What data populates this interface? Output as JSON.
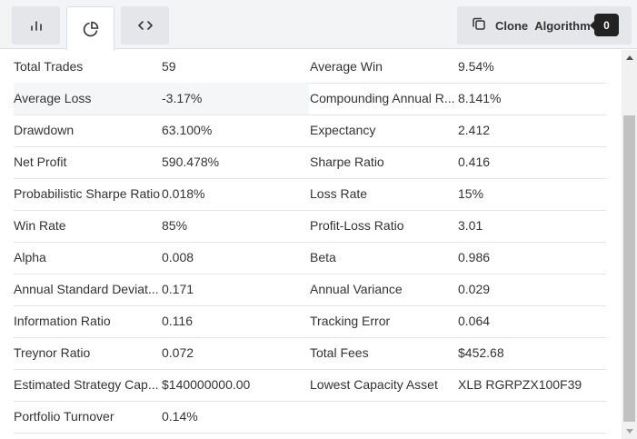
{
  "toolbar": {
    "tabs": [
      {
        "icon": "bar-chart-icon",
        "active": false
      },
      {
        "icon": "pie-chart-icon",
        "active": true
      },
      {
        "icon": "code-icon",
        "active": false
      }
    ],
    "clone_button": {
      "label": "Clone Algorithm",
      "icon": "copy-icon",
      "badge": "0"
    }
  },
  "stats": [
    [
      {
        "label": "Total Trades",
        "value": "59"
      },
      {
        "label": "Average Win",
        "value": "9.54%"
      }
    ],
    [
      {
        "label": "Average Loss",
        "value": "-3.17%"
      },
      {
        "label": "Compounding Annual R...",
        "value": "8.141%"
      }
    ],
    [
      {
        "label": "Drawdown",
        "value": "63.100%"
      },
      {
        "label": "Expectancy",
        "value": "2.412"
      }
    ],
    [
      {
        "label": "Net Profit",
        "value": "590.478%"
      },
      {
        "label": "Sharpe Ratio",
        "value": "0.416"
      }
    ],
    [
      {
        "label": "Probabilistic Sharpe Ratio",
        "value": "0.018%"
      },
      {
        "label": "Loss Rate",
        "value": "15%"
      }
    ],
    [
      {
        "label": "Win Rate",
        "value": "85%"
      },
      {
        "label": "Profit-Loss Ratio",
        "value": "3.01"
      }
    ],
    [
      {
        "label": "Alpha",
        "value": "0.008"
      },
      {
        "label": "Beta",
        "value": "0.986"
      }
    ],
    [
      {
        "label": "Annual Standard Deviat...",
        "value": "0.171"
      },
      {
        "label": "Annual Variance",
        "value": "0.029"
      }
    ],
    [
      {
        "label": "Information Ratio",
        "value": "0.116"
      },
      {
        "label": "Tracking Error",
        "value": "0.064"
      }
    ],
    [
      {
        "label": "Treynor Ratio",
        "value": "0.072"
      },
      {
        "label": "Total Fees",
        "value": "$452.68"
      }
    ],
    [
      {
        "label": "Estimated Strategy Cap...",
        "value": "$140000000.00"
      },
      {
        "label": "Lowest Capacity Asset",
        "value": "XLB RGRPZX100F39"
      }
    ],
    [
      {
        "label": "Portfolio Turnover",
        "value": "0.14%"
      },
      null
    ]
  ],
  "colors": {
    "toolbar_bg": "#f3f4f6",
    "button_bg": "#e4e6ea",
    "badge_bg": "#222222",
    "row_highlight": "#f5f6f8"
  }
}
